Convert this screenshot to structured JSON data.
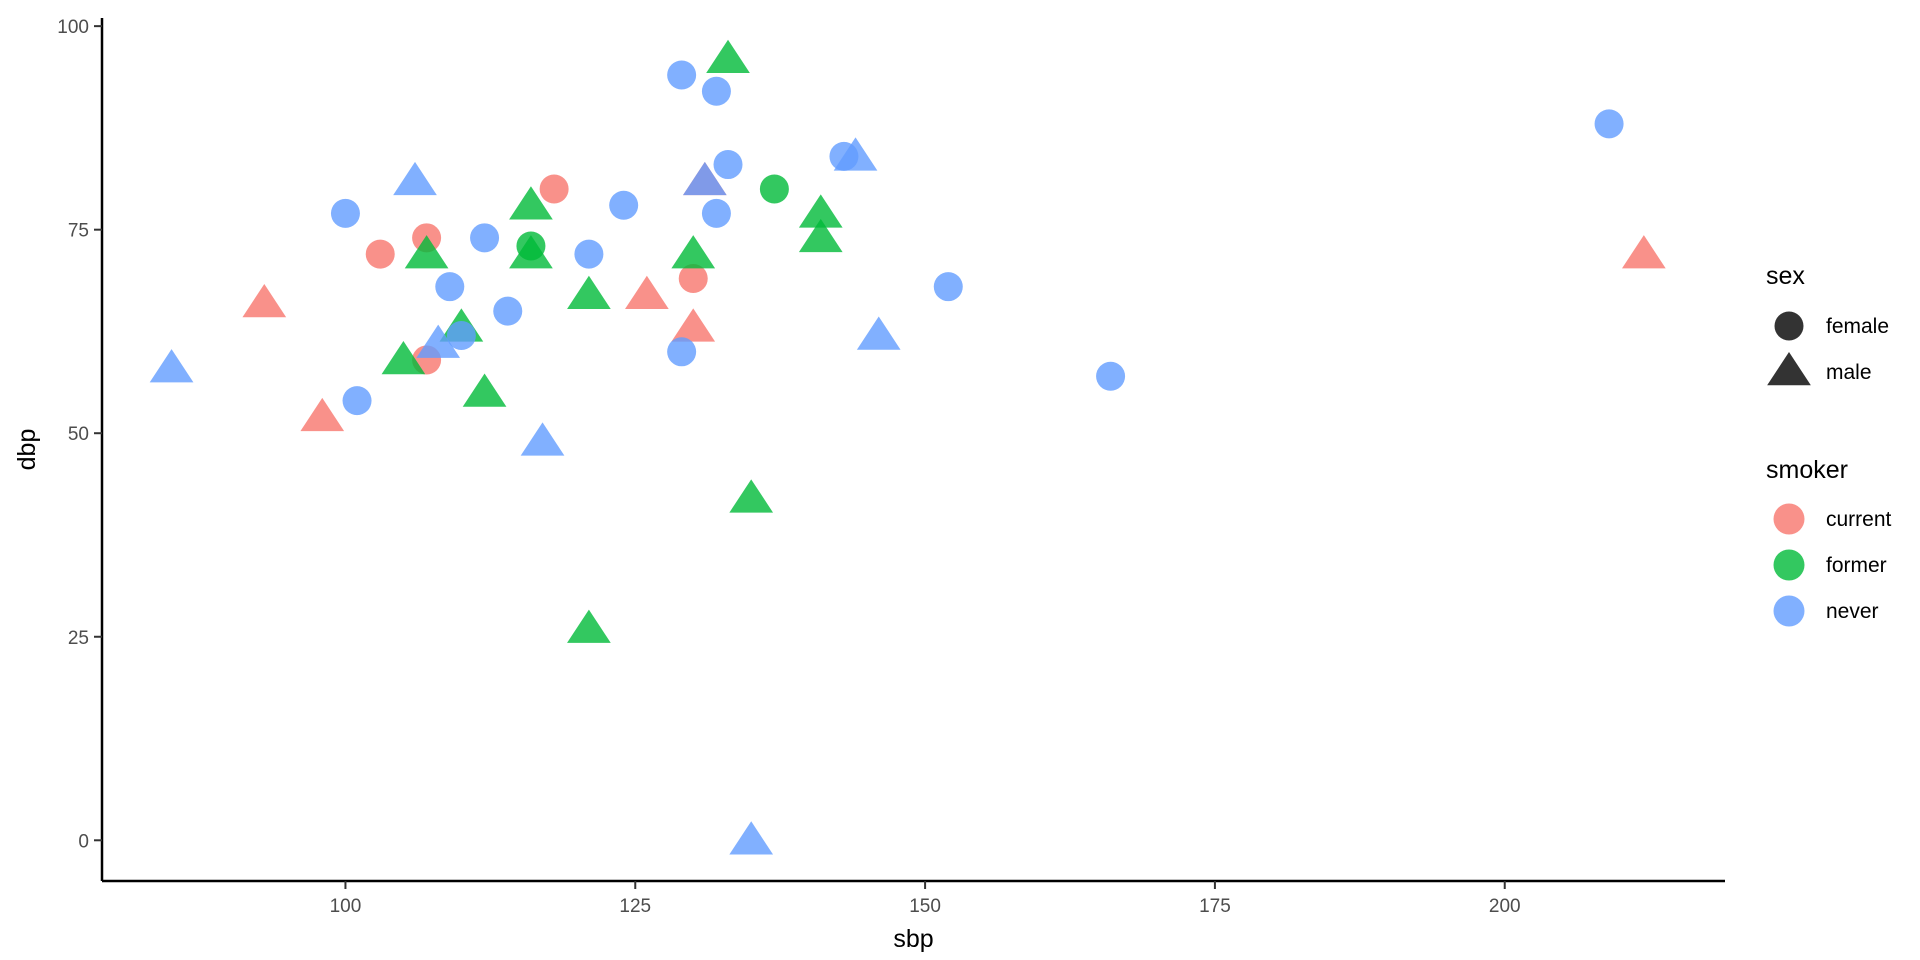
{
  "chart_data": {
    "type": "scatter",
    "xlabel": "sbp",
    "ylabel": "dbp",
    "xlim": [
      79,
      219
    ],
    "ylim": [
      -5,
      101
    ],
    "x_ticks": [
      100,
      125,
      150,
      175,
      200
    ],
    "y_ticks": [
      0,
      25,
      50,
      75,
      100
    ],
    "x_tick_labels": [
      "100",
      "125",
      "150",
      "175",
      "200"
    ],
    "y_tick_labels": [
      "0",
      "25",
      "50",
      "75",
      "100"
    ],
    "grid": false,
    "legend_position": "right",
    "legends": {
      "shape": {
        "title": "sex",
        "entries": [
          {
            "label": "female",
            "shape": "circle"
          },
          {
            "label": "male",
            "shape": "triangle"
          }
        ]
      },
      "color": {
        "title": "smoker",
        "entries": [
          {
            "label": "current",
            "color": "#F8766D"
          },
          {
            "label": "former",
            "color": "#00BA38"
          },
          {
            "label": "never",
            "color": "#619CFF"
          }
        ]
      }
    },
    "point_alpha": 0.8,
    "points": [
      {
        "sbp": 103,
        "dbp": 72,
        "sex": "female",
        "smoker": "current"
      },
      {
        "sbp": 107,
        "dbp": 74,
        "sex": "female",
        "smoker": "current"
      },
      {
        "sbp": 118,
        "dbp": 80,
        "sex": "female",
        "smoker": "current"
      },
      {
        "sbp": 107,
        "dbp": 59,
        "sex": "female",
        "smoker": "current"
      },
      {
        "sbp": 130,
        "dbp": 69,
        "sex": "female",
        "smoker": "current"
      },
      {
        "sbp": 93,
        "dbp": 66,
        "sex": "male",
        "smoker": "current"
      },
      {
        "sbp": 98,
        "dbp": 52,
        "sex": "male",
        "smoker": "current"
      },
      {
        "sbp": 126,
        "dbp": 67,
        "sex": "male",
        "smoker": "current"
      },
      {
        "sbp": 130,
        "dbp": 63,
        "sex": "male",
        "smoker": "current"
      },
      {
        "sbp": 131,
        "dbp": 81,
        "sex": "male",
        "smoker": "current"
      },
      {
        "sbp": 212,
        "dbp": 72,
        "sex": "male",
        "smoker": "current"
      },
      {
        "sbp": 116,
        "dbp": 73,
        "sex": "female",
        "smoker": "former"
      },
      {
        "sbp": 137,
        "dbp": 80,
        "sex": "female",
        "smoker": "former"
      },
      {
        "sbp": 133,
        "dbp": 96,
        "sex": "male",
        "smoker": "former"
      },
      {
        "sbp": 116,
        "dbp": 78,
        "sex": "male",
        "smoker": "former"
      },
      {
        "sbp": 107,
        "dbp": 72,
        "sex": "male",
        "smoker": "former"
      },
      {
        "sbp": 116,
        "dbp": 72,
        "sex": "male",
        "smoker": "former"
      },
      {
        "sbp": 121,
        "dbp": 67,
        "sex": "male",
        "smoker": "former"
      },
      {
        "sbp": 130,
        "dbp": 72,
        "sex": "male",
        "smoker": "former"
      },
      {
        "sbp": 141,
        "dbp": 77,
        "sex": "male",
        "smoker": "former"
      },
      {
        "sbp": 141,
        "dbp": 74,
        "sex": "male",
        "smoker": "former"
      },
      {
        "sbp": 110,
        "dbp": 63,
        "sex": "male",
        "smoker": "former"
      },
      {
        "sbp": 105,
        "dbp": 59,
        "sex": "male",
        "smoker": "former"
      },
      {
        "sbp": 112,
        "dbp": 55,
        "sex": "male",
        "smoker": "former"
      },
      {
        "sbp": 135,
        "dbp": 42,
        "sex": "male",
        "smoker": "former"
      },
      {
        "sbp": 121,
        "dbp": 26,
        "sex": "male",
        "smoker": "former"
      },
      {
        "sbp": 129,
        "dbp": 94,
        "sex": "female",
        "smoker": "never"
      },
      {
        "sbp": 132,
        "dbp": 92,
        "sex": "female",
        "smoker": "never"
      },
      {
        "sbp": 133,
        "dbp": 83,
        "sex": "female",
        "smoker": "never"
      },
      {
        "sbp": 143,
        "dbp": 84,
        "sex": "female",
        "smoker": "never"
      },
      {
        "sbp": 124,
        "dbp": 78,
        "sex": "female",
        "smoker": "never"
      },
      {
        "sbp": 100,
        "dbp": 77,
        "sex": "female",
        "smoker": "never"
      },
      {
        "sbp": 132,
        "dbp": 77,
        "sex": "female",
        "smoker": "never"
      },
      {
        "sbp": 112,
        "dbp": 74,
        "sex": "female",
        "smoker": "never"
      },
      {
        "sbp": 121,
        "dbp": 72,
        "sex": "female",
        "smoker": "never"
      },
      {
        "sbp": 109,
        "dbp": 68,
        "sex": "female",
        "smoker": "never"
      },
      {
        "sbp": 152,
        "dbp": 68,
        "sex": "female",
        "smoker": "never"
      },
      {
        "sbp": 114,
        "dbp": 65,
        "sex": "female",
        "smoker": "never"
      },
      {
        "sbp": 110,
        "dbp": 62,
        "sex": "female",
        "smoker": "never"
      },
      {
        "sbp": 129,
        "dbp": 60,
        "sex": "female",
        "smoker": "never"
      },
      {
        "sbp": 166,
        "dbp": 57,
        "sex": "female",
        "smoker": "never"
      },
      {
        "sbp": 101,
        "dbp": 54,
        "sex": "female",
        "smoker": "never"
      },
      {
        "sbp": 209,
        "dbp": 88,
        "sex": "female",
        "smoker": "never"
      },
      {
        "sbp": 106,
        "dbp": 81,
        "sex": "male",
        "smoker": "never"
      },
      {
        "sbp": 131,
        "dbp": 81,
        "sex": "male",
        "smoker": "never"
      },
      {
        "sbp": 144,
        "dbp": 84,
        "sex": "male",
        "smoker": "never"
      },
      {
        "sbp": 85,
        "dbp": 58,
        "sex": "male",
        "smoker": "never"
      },
      {
        "sbp": 108,
        "dbp": 61,
        "sex": "male",
        "smoker": "never"
      },
      {
        "sbp": 146,
        "dbp": 62,
        "sex": "male",
        "smoker": "never"
      },
      {
        "sbp": 117,
        "dbp": 49,
        "sex": "male",
        "smoker": "never"
      },
      {
        "sbp": 135,
        "dbp": 0,
        "sex": "male",
        "smoker": "never"
      }
    ]
  }
}
